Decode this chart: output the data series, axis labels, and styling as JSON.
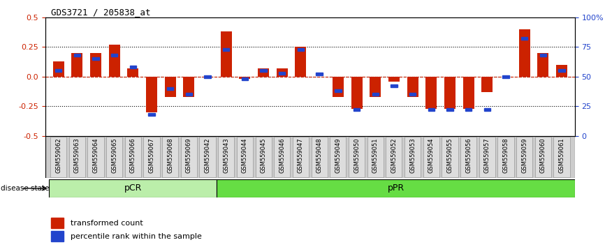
{
  "title": "GDS3721 / 205838_at",
  "samples": [
    "GSM559062",
    "GSM559063",
    "GSM559064",
    "GSM559065",
    "GSM559066",
    "GSM559067",
    "GSM559068",
    "GSM559069",
    "GSM559042",
    "GSM559043",
    "GSM559044",
    "GSM559045",
    "GSM559046",
    "GSM559047",
    "GSM559048",
    "GSM559049",
    "GSM559050",
    "GSM559051",
    "GSM559052",
    "GSM559053",
    "GSM559054",
    "GSM559055",
    "GSM559056",
    "GSM559057",
    "GSM559058",
    "GSM559059",
    "GSM559060",
    "GSM559061"
  ],
  "red_bars": [
    0.13,
    0.2,
    0.2,
    0.27,
    0.07,
    -0.3,
    -0.17,
    -0.17,
    0.0,
    0.38,
    -0.02,
    0.07,
    0.07,
    0.25,
    0.0,
    -0.17,
    -0.27,
    -0.17,
    -0.04,
    -0.17,
    -0.27,
    -0.27,
    -0.27,
    -0.13,
    0.0,
    0.4,
    0.2,
    0.1
  ],
  "blue_marks": [
    55,
    68,
    65,
    68,
    58,
    18,
    40,
    35,
    50,
    73,
    48,
    55,
    53,
    73,
    52,
    38,
    22,
    35,
    42,
    35,
    22,
    22,
    22,
    22,
    50,
    82,
    68,
    55
  ],
  "pCR_count": 9,
  "pPR_count": 19,
  "ylim": [
    -0.5,
    0.5
  ],
  "yticks_left": [
    -0.5,
    -0.25,
    0.0,
    0.25,
    0.5
  ],
  "yticks_right": [
    0,
    25,
    50,
    75,
    100
  ],
  "hlines": [
    0.25,
    0.0,
    -0.25
  ],
  "bar_color": "#cc2200",
  "mark_color": "#2244cc",
  "pCR_color": "#bbeeaa",
  "pPR_color": "#66dd44",
  "label_bg": "#cccccc",
  "legend_red": "transformed count",
  "legend_blue": "percentile rank within the sample",
  "disease_state_label": "disease state",
  "pCR_label": "pCR",
  "pPR_label": "pPR"
}
